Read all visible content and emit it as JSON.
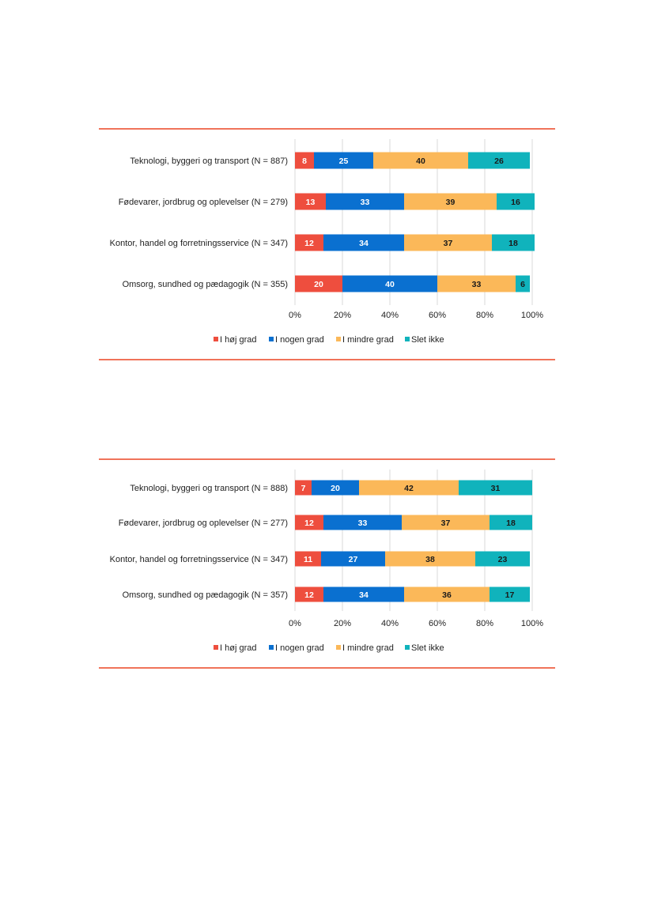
{
  "colors": {
    "rule": "#f0735a",
    "grid": "#d9d9d9",
    "series": [
      "#ee4e3e",
      "#0a70d0",
      "#fbb859",
      "#10b3bc"
    ],
    "label_text": [
      "#ffffff",
      "#ffffff",
      "#1a1a1a",
      "#1a1a1a"
    ]
  },
  "chart_data": [
    {
      "type": "bar",
      "orientation": "horizontal",
      "stacked": true,
      "categories": [
        "Teknologi, byggeri og transport (N = 887)",
        "Fødevarer, jordbrug og oplevelser (N = 279)",
        "Kontor, handel og forretningsservice (N = 347)",
        "Omsorg, sundhed og pædagogik (N = 355)"
      ],
      "series": [
        {
          "name": "I høj grad",
          "values": [
            8,
            13,
            12,
            20
          ]
        },
        {
          "name": "I nogen grad",
          "values": [
            25,
            33,
            34,
            40
          ]
        },
        {
          "name": "I mindre grad",
          "values": [
            40,
            39,
            37,
            33
          ]
        },
        {
          "name": "Slet ikke",
          "values": [
            26,
            16,
            18,
            6
          ]
        }
      ],
      "xlim": [
        0,
        100
      ],
      "ticks": [
        "0%",
        "20%",
        "40%",
        "60%",
        "80%",
        "100%"
      ],
      "legend_position": "bottom",
      "grid": true
    },
    {
      "type": "bar",
      "orientation": "horizontal",
      "stacked": true,
      "categories": [
        "Teknologi, byggeri og transport (N = 888)",
        "Fødevarer, jordbrug og oplevelser (N = 277)",
        "Kontor, handel og forretningsservice (N = 347)",
        "Omsorg, sundhed og pædagogik (N = 357)"
      ],
      "series": [
        {
          "name": "I høj grad",
          "values": [
            7,
            12,
            11,
            12
          ]
        },
        {
          "name": "I nogen grad",
          "values": [
            20,
            33,
            27,
            34
          ]
        },
        {
          "name": "I mindre grad",
          "values": [
            42,
            37,
            38,
            36
          ]
        },
        {
          "name": "Slet ikke",
          "values": [
            31,
            18,
            23,
            17
          ]
        }
      ],
      "xlim": [
        0,
        100
      ],
      "ticks": [
        "0%",
        "20%",
        "40%",
        "60%",
        "80%",
        "100%"
      ],
      "legend_position": "bottom",
      "grid": true
    }
  ]
}
